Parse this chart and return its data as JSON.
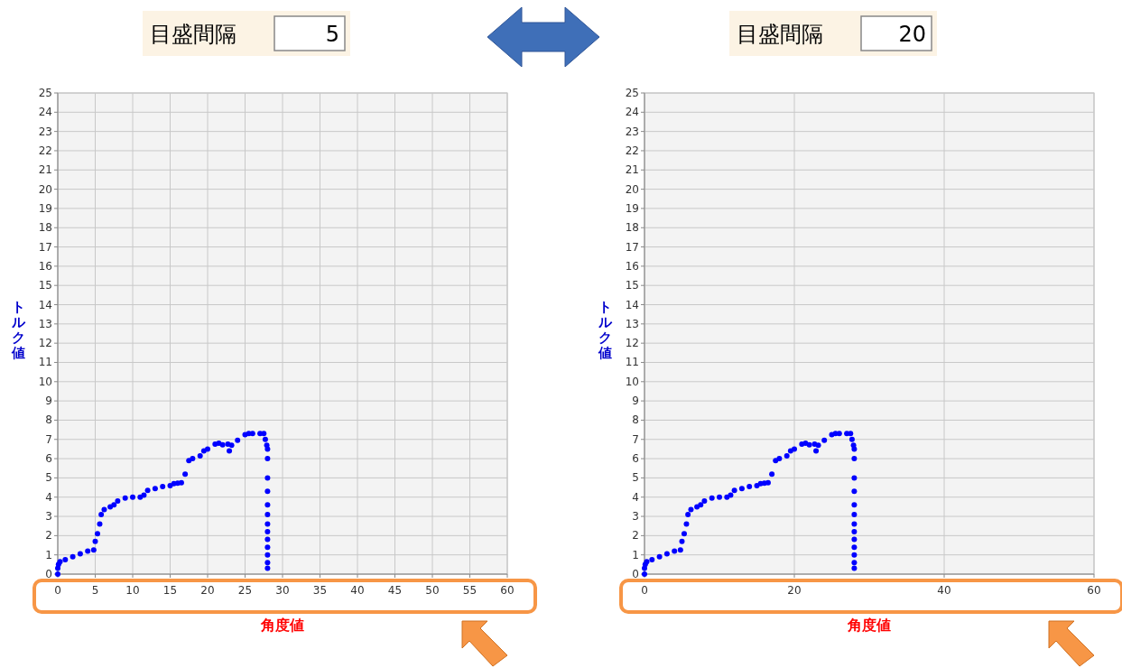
{
  "chart_data": [
    {
      "type": "scatter",
      "title": "目盛間隔",
      "annotations": [
        "5"
      ],
      "xlabel": "角度値",
      "ylabel": "トルク値",
      "xlim": [
        0,
        60
      ],
      "xticks": [
        0,
        5,
        10,
        15,
        20,
        25,
        30,
        35,
        40,
        45,
        50,
        55,
        60
      ],
      "ylim": [
        0,
        25
      ],
      "yticks": [
        0,
        1,
        2,
        3,
        4,
        5,
        6,
        7,
        8,
        9,
        10,
        11,
        12,
        13,
        14,
        15,
        16,
        17,
        18,
        19,
        20,
        21,
        22,
        23,
        24,
        25
      ],
      "grid": true,
      "marker": "circle",
      "series": [
        {
          "color": "#0000ff",
          "x": [
            0,
            0,
            0.1,
            0.3,
            1,
            2,
            3,
            4,
            4.8,
            5,
            5.3,
            5.6,
            5.8,
            6.2,
            7,
            7.5,
            8,
            9,
            10,
            11,
            11.5,
            12,
            13,
            14,
            15,
            15.5,
            16,
            16.5,
            17,
            17.5,
            18,
            19,
            19.5,
            20,
            21,
            21.5,
            22,
            22.7,
            22.9,
            23.2,
            24,
            25,
            25.5,
            26,
            27,
            27.5,
            27.7,
            27.9,
            28,
            28,
            28,
            28,
            28,
            28,
            28,
            28,
            28,
            28,
            28,
            28,
            28
          ],
          "values": [
            0,
            0.3,
            0.5,
            0.65,
            0.75,
            0.9,
            1.05,
            1.2,
            1.25,
            1.7,
            2.1,
            2.6,
            3.1,
            3.35,
            3.5,
            3.6,
            3.8,
            3.95,
            4,
            4,
            4.1,
            4.35,
            4.45,
            4.55,
            4.6,
            4.7,
            4.72,
            4.75,
            5.2,
            5.9,
            6,
            6.15,
            6.4,
            6.5,
            6.75,
            6.8,
            6.72,
            6.75,
            6.4,
            6.7,
            6.95,
            7.25,
            7.3,
            7.3,
            7.3,
            7.3,
            7,
            6.7,
            6.5,
            6,
            5,
            4.3,
            3.6,
            3.1,
            2.6,
            2.2,
            1.8,
            1.4,
            1,
            0.6,
            0.3
          ]
        }
      ]
    },
    {
      "type": "scatter",
      "title": "目盛間隔",
      "annotations": [
        "20"
      ],
      "xlabel": "角度値",
      "ylabel": "トルク値",
      "xlim": [
        0,
        60
      ],
      "xticks": [
        0,
        20,
        40,
        60
      ],
      "ylim": [
        0,
        25
      ],
      "yticks": [
        0,
        1,
        2,
        3,
        4,
        5,
        6,
        7,
        8,
        9,
        10,
        11,
        12,
        13,
        14,
        15,
        16,
        17,
        18,
        19,
        20,
        21,
        22,
        23,
        24,
        25
      ],
      "grid": true,
      "marker": "circle",
      "series": [
        {
          "color": "#0000ff",
          "x": [
            0,
            0,
            0.1,
            0.3,
            1,
            2,
            3,
            4,
            4.8,
            5,
            5.3,
            5.6,
            5.8,
            6.2,
            7,
            7.5,
            8,
            9,
            10,
            11,
            11.5,
            12,
            13,
            14,
            15,
            15.5,
            16,
            16.5,
            17,
            17.5,
            18,
            19,
            19.5,
            20,
            21,
            21.5,
            22,
            22.7,
            22.9,
            23.2,
            24,
            25,
            25.5,
            26,
            27,
            27.5,
            27.7,
            27.9,
            28,
            28,
            28,
            28,
            28,
            28,
            28,
            28,
            28,
            28,
            28,
            28,
            28
          ],
          "values": [
            0,
            0.3,
            0.5,
            0.65,
            0.75,
            0.9,
            1.05,
            1.2,
            1.25,
            1.7,
            2.1,
            2.6,
            3.1,
            3.35,
            3.5,
            3.6,
            3.8,
            3.95,
            4,
            4,
            4.1,
            4.35,
            4.45,
            4.55,
            4.6,
            4.7,
            4.72,
            4.75,
            5.2,
            5.9,
            6,
            6.15,
            6.4,
            6.5,
            6.75,
            6.8,
            6.72,
            6.75,
            6.4,
            6.7,
            6.95,
            7.25,
            7.3,
            7.3,
            7.3,
            7.3,
            7,
            6.7,
            6.5,
            6,
            5,
            4.3,
            3.6,
            3.1,
            2.6,
            2.2,
            1.8,
            1.4,
            1,
            0.6,
            0.3
          ]
        }
      ]
    }
  ]
}
